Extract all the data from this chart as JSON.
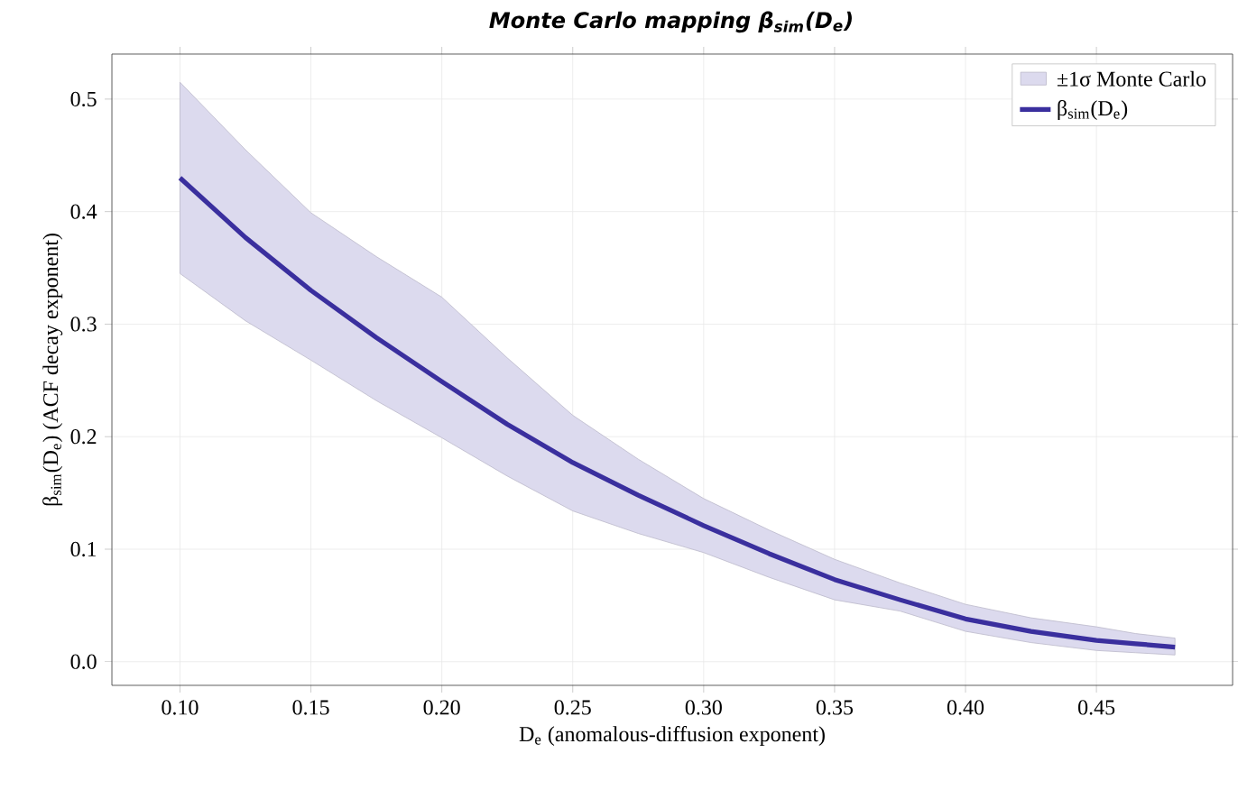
{
  "chart_data": {
    "type": "line",
    "title": "Monte Carlo mapping  β$_{sim}$(D$_{e}$)",
    "xlabel": "D$_{e}$  (anomalous-diffusion exponent)",
    "ylabel": "β$_{sim}$(D$_{e}$)  (ACF decay exponent)",
    "annotations": [
      "±1σ Monte Carlo"
    ],
    "x": [
      0.1,
      0.125,
      0.15,
      0.175,
      0.2,
      0.225,
      0.25,
      0.275,
      0.3,
      0.325,
      0.35,
      0.375,
      0.4,
      0.425,
      0.45,
      0.465,
      0.48
    ],
    "series": [
      {
        "name": "β$_{sim}$(D$_{e}$)",
        "color": "#3a2f9e",
        "values": [
          0.43,
          0.377,
          0.33,
          0.288,
          0.249,
          0.211,
          0.177,
          0.148,
          0.121,
          0.096,
          0.073,
          0.055,
          0.038,
          0.027,
          0.019,
          0.016,
          0.013
        ],
        "upper": [
          0.515,
          0.455,
          0.399,
          0.36,
          0.324,
          0.27,
          0.219,
          0.18,
          0.145,
          0.117,
          0.091,
          0.07,
          0.051,
          0.039,
          0.031,
          0.025,
          0.021
        ],
        "lower": [
          0.345,
          0.303,
          0.268,
          0.232,
          0.199,
          0.165,
          0.134,
          0.114,
          0.097,
          0.075,
          0.055,
          0.045,
          0.027,
          0.017,
          0.01,
          0.008,
          0.006
        ]
      }
    ],
    "xlim": [
      0.074,
      0.502
    ],
    "ylim": [
      -0.021,
      0.54
    ],
    "xticks": [
      {
        "value": 0.1,
        "label": "0.10"
      },
      {
        "value": 0.15,
        "label": "0.15"
      },
      {
        "value": 0.2,
        "label": "0.20"
      },
      {
        "value": 0.25,
        "label": "0.25"
      },
      {
        "value": 0.3,
        "label": "0.30"
      },
      {
        "value": 0.35,
        "label": "0.35"
      },
      {
        "value": 0.4,
        "label": "0.40"
      },
      {
        "value": 0.45,
        "label": "0.45"
      }
    ],
    "yticks": [
      {
        "value": 0,
        "label": "0.0"
      },
      0.1,
      0.2,
      0.3,
      0.4,
      0.5
    ],
    "grid": true,
    "legend": "top right",
    "line_style": "solid"
  }
}
